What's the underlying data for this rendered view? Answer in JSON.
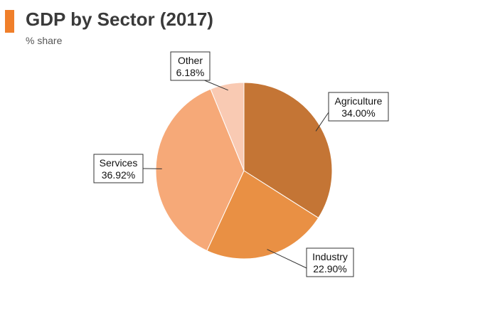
{
  "header": {
    "title": "GDP by Sector (2017)",
    "subtitle": "% share",
    "accent_color": "#f07f2a"
  },
  "chart_data": {
    "type": "pie",
    "title": "GDP by Sector (2017)",
    "subtitle": "% share",
    "start_angle": "12 o'clock, clockwise",
    "slices": [
      {
        "name": "Agriculture",
        "value": 34.0,
        "label": "34.00%",
        "color": "#c47535"
      },
      {
        "name": "Industry",
        "value": 22.9,
        "label": "22.90%",
        "color": "#e99044"
      },
      {
        "name": "Services",
        "value": 36.92,
        "label": "36.92%",
        "color": "#f6a978"
      },
      {
        "name": "Other",
        "value": 6.18,
        "label": "6.18%",
        "color": "#f9cab3"
      }
    ]
  }
}
